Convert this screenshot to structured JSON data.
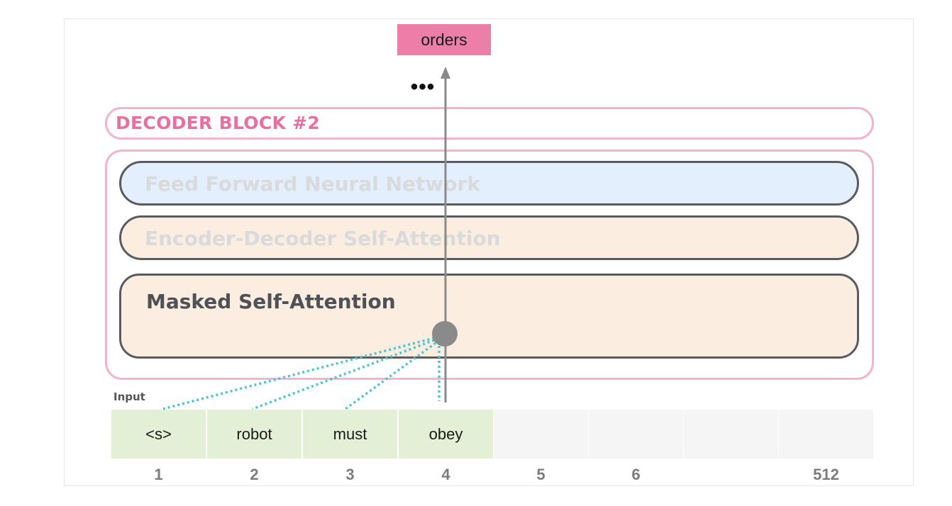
{
  "output_token": "orders",
  "ellipsis": "•••",
  "decoder_block_title": "DECODER BLOCK #2",
  "layers": {
    "ffnn": "Feed Forward Neural Network",
    "encoder_decoder": "Encoder-Decoder Self-Attention",
    "masked": "Masked Self-Attention"
  },
  "input_label": "Input",
  "input_cells": [
    {
      "token": "<s>",
      "position": "1"
    },
    {
      "token": "robot",
      "position": "2"
    },
    {
      "token": "must",
      "position": "3"
    },
    {
      "token": "obey",
      "position": "4"
    },
    {
      "token": "",
      "position": "5"
    },
    {
      "token": "",
      "position": "6"
    },
    {
      "token": "",
      "position": ""
    },
    {
      "token": "",
      "position": "512"
    }
  ],
  "colors": {
    "output_box": "#ec7fa7",
    "decoder_outline": "#f2b3cd",
    "decoder_title": "#e96fa0",
    "ffnn_fill": "#e3effc",
    "attention_fill": "#fbede0",
    "layer_border": "#595b61",
    "input_filled": "#e3f0d5",
    "input_empty": "#f5f5f5",
    "attention_lines": "#4fc3d6",
    "flow_arrow": "#8a8a8a"
  }
}
